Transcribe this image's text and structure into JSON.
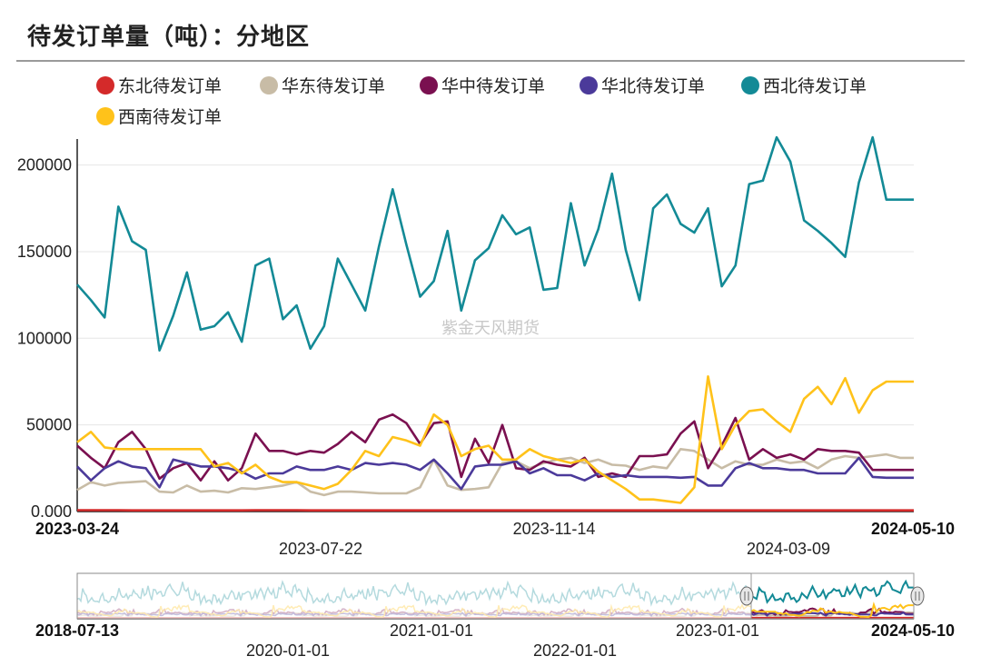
{
  "title": "待发订单量（吨）：分地区",
  "watermark": "紫金天风期货",
  "chart_data": {
    "type": "line",
    "title": "待发订单量（吨）：分地区",
    "xlabel": "",
    "ylabel": "",
    "ylim": [
      0,
      215000
    ],
    "grid": "horizontal",
    "legend_position": "top",
    "y_ticks": [
      "0.000",
      "50000",
      "100000",
      "150000",
      "200000"
    ],
    "x_ticks_upper": [
      "2023-03-24",
      "2023-07-22",
      "2023-11-14",
      "2024-03-09",
      "2024-05-10"
    ],
    "x_ticks_lower": [
      "2018-07-13",
      "2020-01-01",
      "2021-01-01",
      "2022-01-01",
      "2023-01-01",
      "2024-05-10"
    ],
    "series": [
      {
        "name": "东北待发订单",
        "color": "#d42a2a",
        "values": [
          800,
          800,
          800,
          800,
          700,
          700,
          700,
          700,
          700,
          700,
          700,
          700,
          700,
          800,
          800,
          800,
          800,
          700,
          700,
          700,
          700,
          700,
          700,
          700,
          700,
          700,
          700,
          700,
          700,
          700,
          700,
          700,
          700,
          700,
          700,
          700,
          700,
          700,
          700,
          700,
          700,
          700,
          700,
          700,
          700,
          700,
          700,
          700,
          700,
          700,
          700,
          700,
          700,
          700,
          700,
          700,
          700,
          700,
          700,
          700,
          700,
          700
        ]
      },
      {
        "name": "华东待发订单",
        "color": "#c8bca6",
        "values": [
          12500,
          17000,
          15000,
          16500,
          17000,
          17500,
          11500,
          11000,
          15000,
          11500,
          12000,
          11000,
          13500,
          13000,
          14000,
          15000,
          17000,
          11500,
          9500,
          11500,
          11500,
          11000,
          10500,
          10500,
          10500,
          14000,
          30000,
          15000,
          12500,
          13000,
          14000,
          28000,
          29000,
          25000,
          28000,
          30000,
          31000,
          28000,
          30000,
          27000,
          26500,
          24000,
          26000,
          25000,
          36000,
          35000,
          30000,
          25000,
          29000,
          27000,
          27000,
          30000,
          28000,
          29000,
          25000,
          30000,
          32000,
          31000,
          32000,
          33000,
          31000,
          31000
        ]
      },
      {
        "name": "华中待发订单",
        "color": "#7a1050",
        "values": [
          38000,
          31000,
          25000,
          40000,
          46000,
          36000,
          19000,
          25000,
          28000,
          18000,
          29000,
          18000,
          25000,
          45000,
          35000,
          35000,
          33000,
          35000,
          34000,
          39000,
          46000,
          40000,
          53000,
          56000,
          51000,
          39000,
          51000,
          52000,
          20000,
          42000,
          28000,
          50000,
          25000,
          24000,
          29000,
          27000,
          26000,
          31000,
          20000,
          22000,
          20000,
          32000,
          32000,
          33000,
          45000,
          52000,
          25000,
          38000,
          54000,
          30000,
          36000,
          31000,
          33000,
          30000,
          36000,
          35000,
          35000,
          34000,
          24000,
          24000,
          24000,
          24000
        ]
      },
      {
        "name": "华北待发订单",
        "color": "#4b3a9a",
        "values": [
          26000,
          18000,
          25000,
          29000,
          26000,
          25000,
          14000,
          30000,
          28000,
          26000,
          26000,
          25000,
          23000,
          19000,
          22000,
          22000,
          26000,
          24000,
          24000,
          26000,
          24000,
          28000,
          27000,
          28000,
          27000,
          24000,
          30000,
          22000,
          13000,
          26000,
          27000,
          27000,
          29000,
          22000,
          25000,
          21000,
          21000,
          18000,
          22000,
          20000,
          21000,
          20000,
          20000,
          20000,
          19500,
          20000,
          15000,
          15000,
          25000,
          28000,
          25000,
          25000,
          24000,
          24000,
          22000,
          22000,
          22000,
          31000,
          20000,
          19500,
          19500,
          19500
        ]
      },
      {
        "name": "西北待发订单",
        "color": "#138a96",
        "values": [
          131000,
          122000,
          112000,
          176000,
          156000,
          151000,
          93000,
          113000,
          138000,
          105000,
          107000,
          115000,
          98000,
          142000,
          146000,
          111000,
          119000,
          94000,
          107000,
          146000,
          131000,
          116000,
          153000,
          186000,
          154000,
          124000,
          133000,
          162000,
          116000,
          145000,
          152000,
          171000,
          160000,
          164000,
          128000,
          129000,
          178000,
          142000,
          163000,
          195000,
          151000,
          122000,
          175000,
          183000,
          166000,
          161000,
          175000,
          130000,
          142000,
          189000,
          191000,
          216000,
          202000,
          168000,
          162000,
          155000,
          147000,
          190000,
          216000,
          180000,
          180000,
          180000
        ]
      },
      {
        "name": "西南待发订单",
        "color": "#ffc21a",
        "values": [
          40000,
          46000,
          37000,
          36000,
          36000,
          36000,
          36000,
          36000,
          36000,
          36000,
          26000,
          28000,
          22000,
          27000,
          20000,
          17000,
          17000,
          15000,
          13000,
          16000,
          24000,
          35000,
          32000,
          43000,
          41000,
          38000,
          56000,
          50000,
          32000,
          36000,
          38000,
          30000,
          30000,
          36000,
          32000,
          30000,
          28000,
          30000,
          23000,
          18000,
          13000,
          7000,
          7000,
          6000,
          5000,
          14000,
          78000,
          36000,
          50000,
          58000,
          59000,
          52000,
          46000,
          65000,
          72000,
          62000,
          77000,
          57000,
          70000,
          75000,
          75000,
          75000
        ]
      }
    ]
  }
}
